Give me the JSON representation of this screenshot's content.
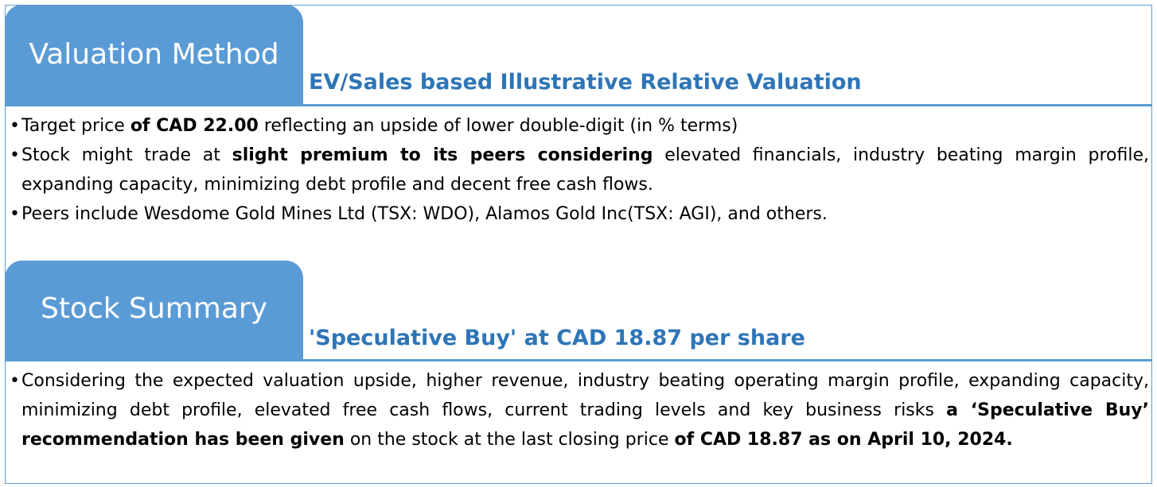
{
  "valuation": {
    "tab_label": "Valuation Method",
    "heading": "EV/Sales based Illustrative Relative Valuation",
    "bullet1": {
      "t1": "Target price ",
      "b1": "of CAD 22.00",
      "t2": " reflecting an upside of lower double-digit (in % terms)"
    },
    "bullet2": {
      "t1": "Stock might trade at ",
      "b1": "slight premium to its peers considering",
      "t2": " elevated financials, industry beating margin profile, expanding capacity, minimizing debt profile and decent free cash flows."
    },
    "bullet3": {
      "t1": "Peers include Wesdome Gold Mines Ltd (TSX: WDO), Alamos Gold Inc(TSX: AGI), and others."
    }
  },
  "summary": {
    "tab_label": "Stock Summary",
    "heading": "'Speculative Buy' at CAD 18.87 per share",
    "bullet1": {
      "t1": "Considering the expected valuation upside, higher revenue, industry beating operating margin profile, expanding capacity, minimizing debt profile, elevated free cash flows, current trading levels and key business risks ",
      "b1": "a ‘Speculative Buy’ recommendation has been given",
      "t2": " on the stock at the last closing price ",
      "b2": "of CAD 18.87 as on April 10, 2024."
    }
  },
  "colors": {
    "tab_fill": "#5b9bd5",
    "heading_text": "#2e75b6",
    "rule": "#5b9bd5"
  }
}
